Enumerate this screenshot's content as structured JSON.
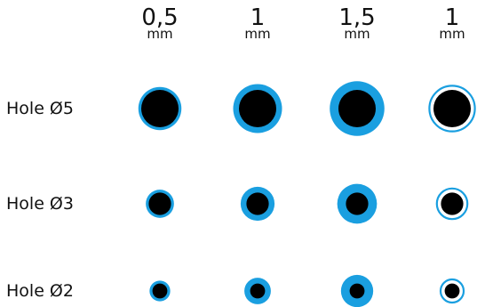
{
  "columns": [
    {
      "value": "0,5",
      "unit": "mm",
      "style": "filled",
      "ring_mm": 0.5
    },
    {
      "value": "1",
      "unit": "mm",
      "style": "filled",
      "ring_mm": 1
    },
    {
      "value": "1,5",
      "unit": "mm",
      "style": "filled",
      "ring_mm": 1.5
    },
    {
      "value": "1",
      "unit": "mm",
      "style": "outlined",
      "ring_mm": 1
    }
  ],
  "rows": [
    {
      "label": "Hole Ø5",
      "hole_mm": 5
    },
    {
      "label": "Hole Ø3",
      "hole_mm": 3
    },
    {
      "label": "Hole Ø2",
      "hole_mm": 2
    }
  ],
  "colors": {
    "ring": "#1a9fe0",
    "hole": "#000000",
    "gap": "#ffffff"
  }
}
